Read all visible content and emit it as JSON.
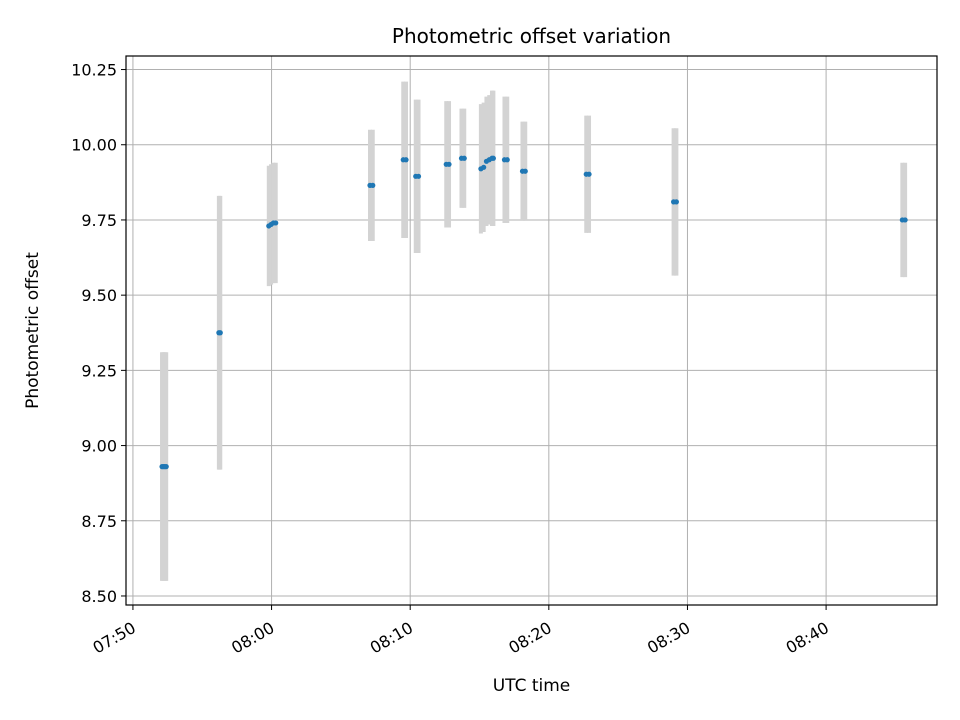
{
  "chart_data": {
    "type": "scatter",
    "title": "Photometric offset variation",
    "xlabel": "UTC time",
    "ylabel": "Photometric offset",
    "xlim": [
      "07:49:30",
      "08:48:00"
    ],
    "ylim": [
      8.47,
      10.295
    ],
    "grid": true,
    "x_ticks": [
      "07:50",
      "08:00",
      "08:10",
      "08:20",
      "08:30",
      "08:40"
    ],
    "y_ticks": [
      8.5,
      8.75,
      9.0,
      9.25,
      9.5,
      9.75,
      10.0,
      10.25
    ],
    "y_tick_labels": [
      "8.50",
      "8.75",
      "9.00",
      "9.25",
      "9.50",
      "9.75",
      "10.00",
      "10.25"
    ],
    "marker_color": "#1f77b4",
    "errorbar_color": "#d3d3d3",
    "series": [
      {
        "points": [
          {
            "t": "07:52:06",
            "y": 8.93,
            "yerr": 0.38
          },
          {
            "t": "07:52:12",
            "y": 8.93,
            "yerr": 0.38
          },
          {
            "t": "07:52:18",
            "y": 8.93,
            "yerr": 0.38
          },
          {
            "t": "07:52:24",
            "y": 8.93,
            "yerr": 0.38
          },
          {
            "t": "07:56:12",
            "y": 9.375,
            "yerr": 0.455
          },
          {
            "t": "07:56:18",
            "y": 9.375,
            "yerr": 0.455
          },
          {
            "t": "07:59:48",
            "y": 9.73,
            "yerr": 0.2
          },
          {
            "t": "07:59:58",
            "y": 9.735,
            "yerr": 0.2
          },
          {
            "t": "08:00:08",
            "y": 9.74,
            "yerr": 0.2
          },
          {
            "t": "08:00:18",
            "y": 9.74,
            "yerr": 0.2
          },
          {
            "t": "08:07:06",
            "y": 9.865,
            "yerr": 0.185
          },
          {
            "t": "08:07:18",
            "y": 9.865,
            "yerr": 0.185
          },
          {
            "t": "08:09:30",
            "y": 9.95,
            "yerr": 0.26
          },
          {
            "t": "08:09:42",
            "y": 9.95,
            "yerr": 0.26
          },
          {
            "t": "08:10:24",
            "y": 9.895,
            "yerr": 0.255
          },
          {
            "t": "08:10:36",
            "y": 9.895,
            "yerr": 0.255
          },
          {
            "t": "08:12:36",
            "y": 9.935,
            "yerr": 0.21
          },
          {
            "t": "08:12:48",
            "y": 9.935,
            "yerr": 0.21
          },
          {
            "t": "08:13:42",
            "y": 9.955,
            "yerr": 0.165
          },
          {
            "t": "08:13:54",
            "y": 9.955,
            "yerr": 0.165
          },
          {
            "t": "08:15:06",
            "y": 9.92,
            "yerr": 0.215
          },
          {
            "t": "08:15:18",
            "y": 9.925,
            "yerr": 0.215
          },
          {
            "t": "08:15:30",
            "y": 9.945,
            "yerr": 0.215
          },
          {
            "t": "08:15:42",
            "y": 9.95,
            "yerr": 0.215
          },
          {
            "t": "08:15:54",
            "y": 9.955,
            "yerr": 0.225
          },
          {
            "t": "08:16:00",
            "y": 9.955,
            "yerr": 0.225
          },
          {
            "t": "08:16:48",
            "y": 9.95,
            "yerr": 0.21
          },
          {
            "t": "08:17:00",
            "y": 9.95,
            "yerr": 0.21
          },
          {
            "t": "08:18:06",
            "y": 9.912,
            "yerr": 0.165
          },
          {
            "t": "08:18:18",
            "y": 9.912,
            "yerr": 0.165
          },
          {
            "t": "08:22:42",
            "y": 9.902,
            "yerr": 0.195
          },
          {
            "t": "08:22:54",
            "y": 9.902,
            "yerr": 0.195
          },
          {
            "t": "08:29:00",
            "y": 9.81,
            "yerr": 0.245
          },
          {
            "t": "08:29:12",
            "y": 9.81,
            "yerr": 0.245
          },
          {
            "t": "08:45:30",
            "y": 9.75,
            "yerr": 0.19
          },
          {
            "t": "08:45:42",
            "y": 9.75,
            "yerr": 0.19
          }
        ]
      }
    ]
  }
}
